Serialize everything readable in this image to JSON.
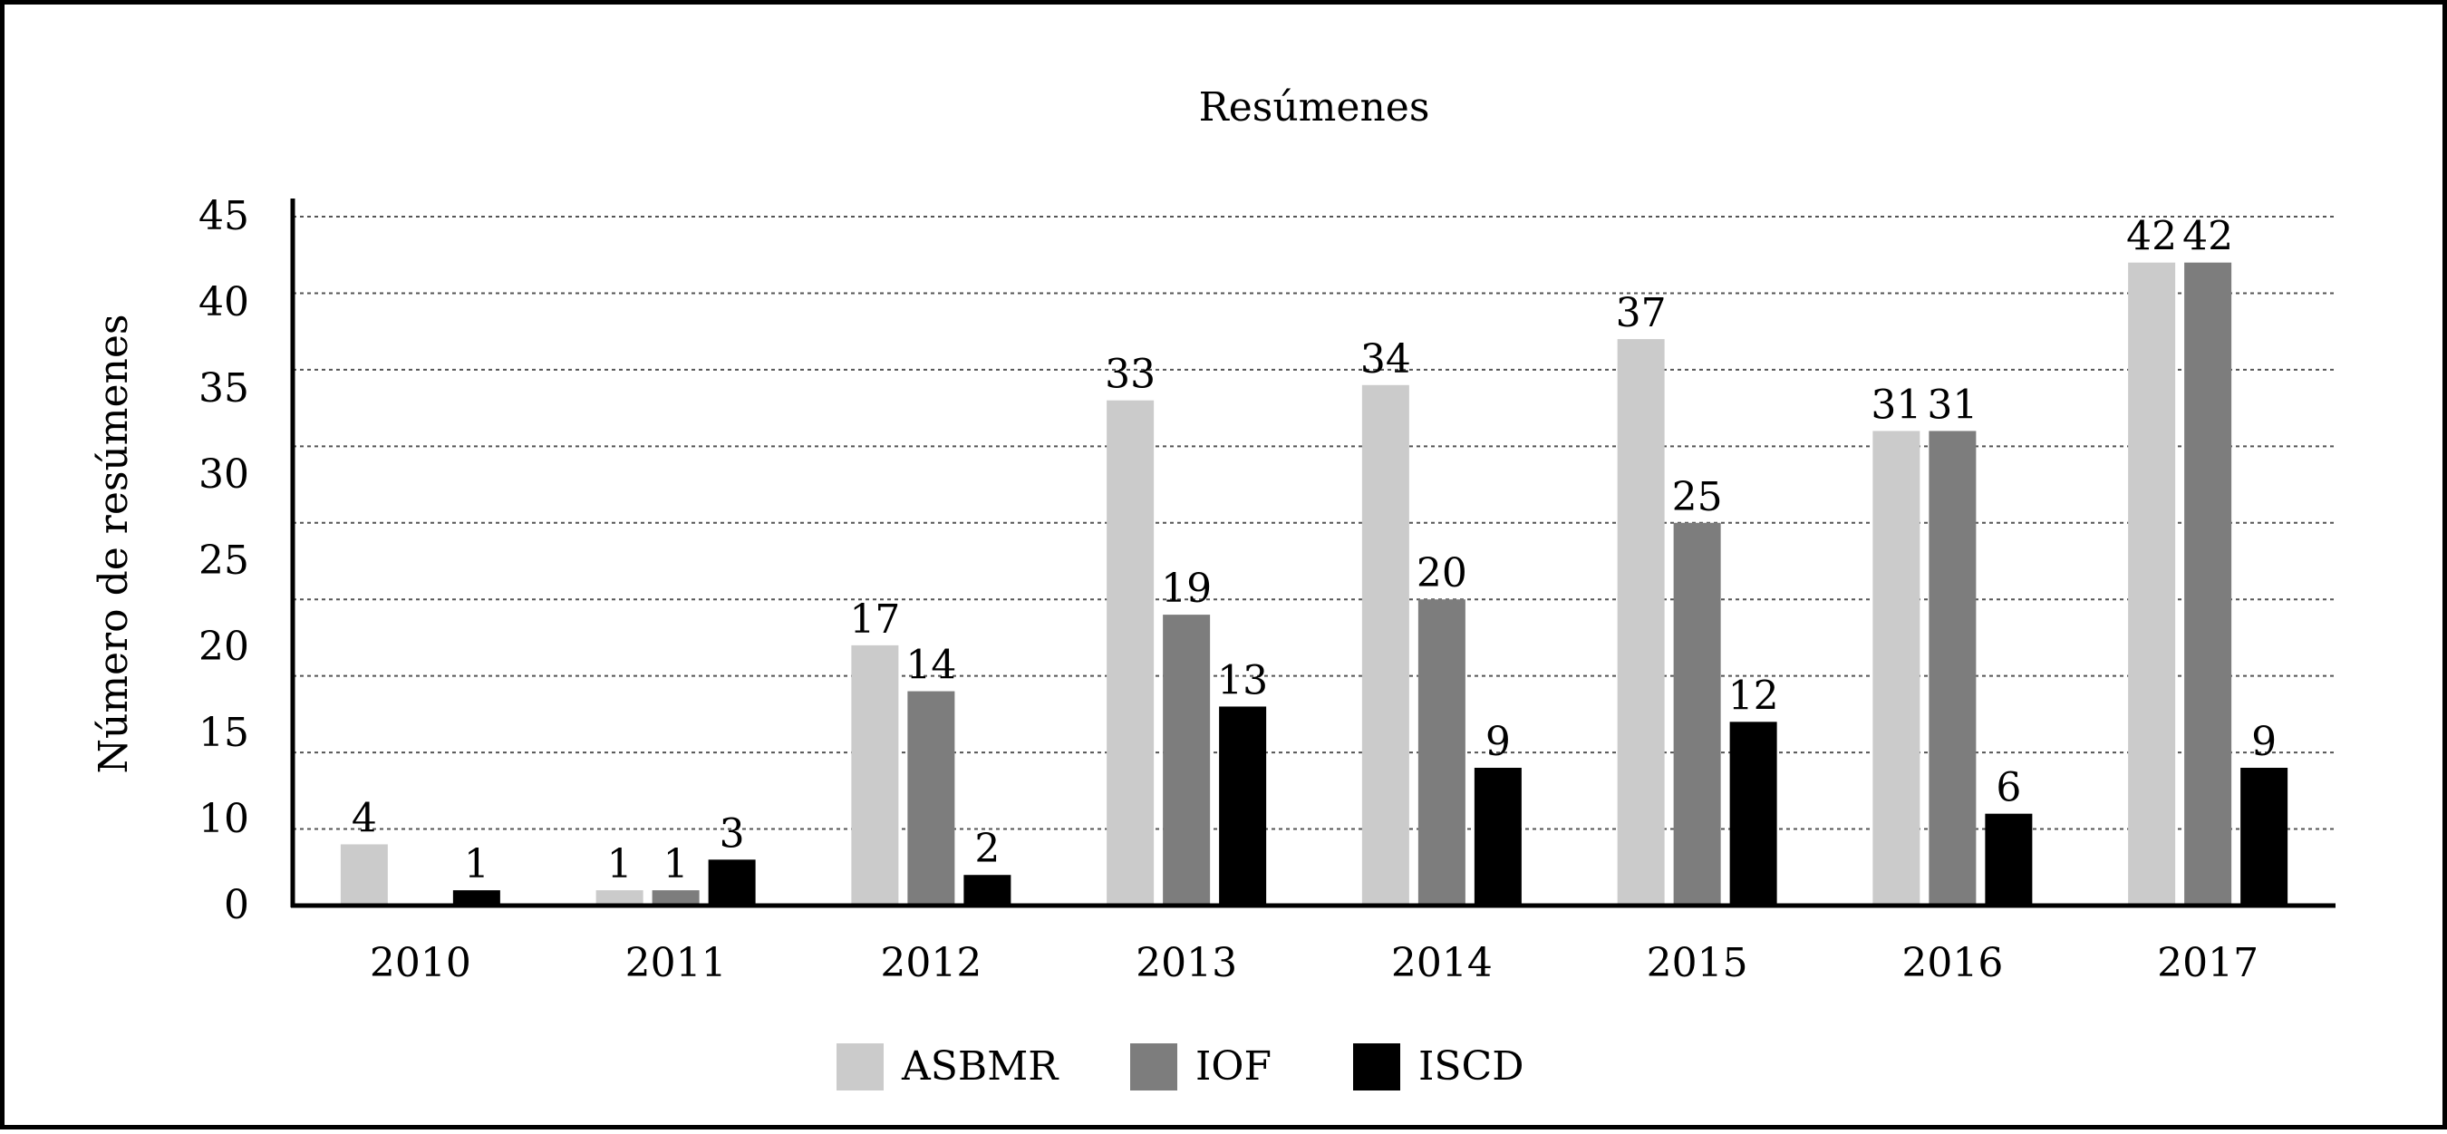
{
  "chart_data": {
    "type": "bar",
    "title": "Resúmenes",
    "ylabel": "Número de resúmenes",
    "xlabel": "",
    "categories": [
      "2010",
      "2011",
      "2012",
      "2013",
      "2014",
      "2015",
      "2016",
      "2017"
    ],
    "series": [
      {
        "name": "ASBMR",
        "color": "#cbcbcb",
        "values": [
          4,
          1,
          17,
          33,
          34,
          37,
          31,
          42
        ],
        "labels": [
          "4",
          "1",
          "17",
          "33",
          "34",
          "37",
          "31",
          "42"
        ]
      },
      {
        "name": "IOF",
        "color": "#7d7d7d",
        "values": [
          0,
          1,
          14,
          19,
          20,
          25,
          31,
          42
        ],
        "labels": [
          "",
          "1",
          "14",
          "19",
          "20",
          "25",
          "31",
          "42"
        ]
      },
      {
        "name": "ISCD",
        "color": "#000000",
        "values": [
          1,
          3,
          2,
          13,
          9,
          12,
          6,
          9
        ],
        "labels": [
          "1",
          "3",
          "2",
          "13",
          "9",
          "12",
          "6",
          "9"
        ]
      }
    ],
    "ylim": [
      0,
      45
    ],
    "yticks": [
      "0",
      "10",
      "15",
      "20",
      "25",
      "30",
      "35",
      "40",
      "45"
    ],
    "grid": "horizontal-dashed",
    "legend": "bottom-center"
  }
}
